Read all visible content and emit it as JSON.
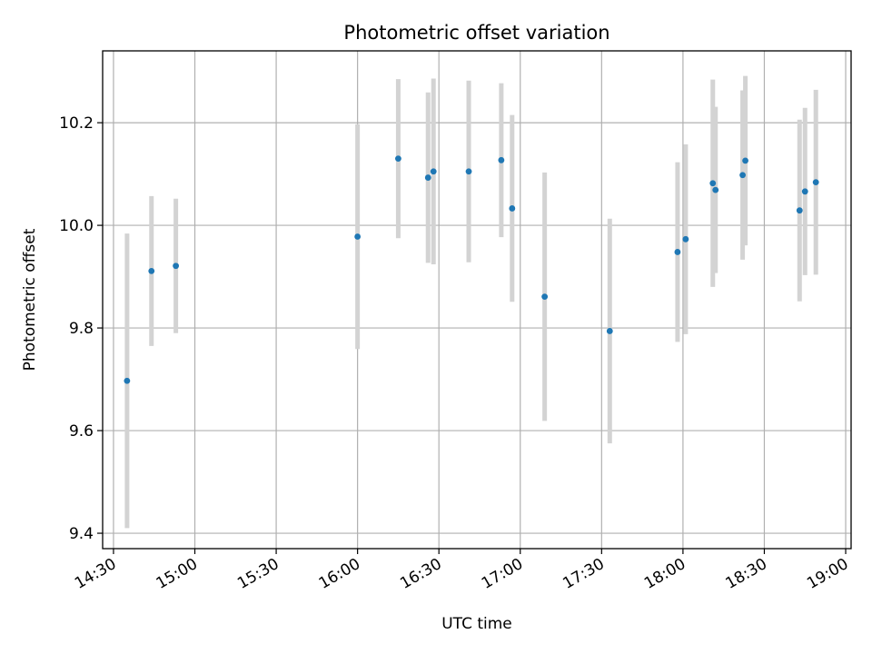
{
  "chart_data": {
    "type": "scatter",
    "title": "Photometric offset variation",
    "xlabel": "UTC time",
    "ylabel": "Photometric offset",
    "x_axis_kind": "time",
    "xlim": [
      "14:26",
      "19:02"
    ],
    "ylim": [
      9.37,
      10.34
    ],
    "x_ticks": [
      "14:30",
      "15:00",
      "15:30",
      "16:00",
      "16:30",
      "17:00",
      "17:30",
      "18:00",
      "18:30",
      "19:00"
    ],
    "y_ticks": [
      "9.4",
      "9.6",
      "9.8",
      "10.0",
      "10.2"
    ],
    "grid": true,
    "legend": "none",
    "colors": {
      "marker": "#1f77b4",
      "errorbar": "#d3d3d3",
      "grid": "#b0b0b0"
    },
    "series": [
      {
        "points": [
          {
            "x": "14:35",
            "y": 9.697,
            "err": 0.287
          },
          {
            "x": "14:44",
            "y": 9.911,
            "err": 0.146
          },
          {
            "x": "14:53",
            "y": 9.921,
            "err": 0.131
          },
          {
            "x": "16:00",
            "y": 9.978,
            "err": 0.219
          },
          {
            "x": "16:15",
            "y": 10.13,
            "err": 0.155
          },
          {
            "x": "16:26",
            "y": 10.093,
            "err": 0.166
          },
          {
            "x": "16:28",
            "y": 10.105,
            "err": 0.181
          },
          {
            "x": "16:41",
            "y": 10.105,
            "err": 0.177
          },
          {
            "x": "16:53",
            "y": 10.127,
            "err": 0.15
          },
          {
            "x": "16:57",
            "y": 10.033,
            "err": 0.182
          },
          {
            "x": "17:09",
            "y": 9.861,
            "err": 0.242
          },
          {
            "x": "17:33",
            "y": 9.794,
            "err": 0.219
          },
          {
            "x": "17:58",
            "y": 9.948,
            "err": 0.175
          },
          {
            "x": "18:01",
            "y": 9.973,
            "err": 0.185
          },
          {
            "x": "18:11",
            "y": 10.082,
            "err": 0.202
          },
          {
            "x": "18:12",
            "y": 10.069,
            "err": 0.162
          },
          {
            "x": "18:22",
            "y": 10.098,
            "err": 0.165
          },
          {
            "x": "18:23",
            "y": 10.126,
            "err": 0.165
          },
          {
            "x": "18:43",
            "y": 10.029,
            "err": 0.177
          },
          {
            "x": "18:45",
            "y": 10.066,
            "err": 0.163
          },
          {
            "x": "18:49",
            "y": 10.084,
            "err": 0.18
          }
        ]
      }
    ]
  }
}
